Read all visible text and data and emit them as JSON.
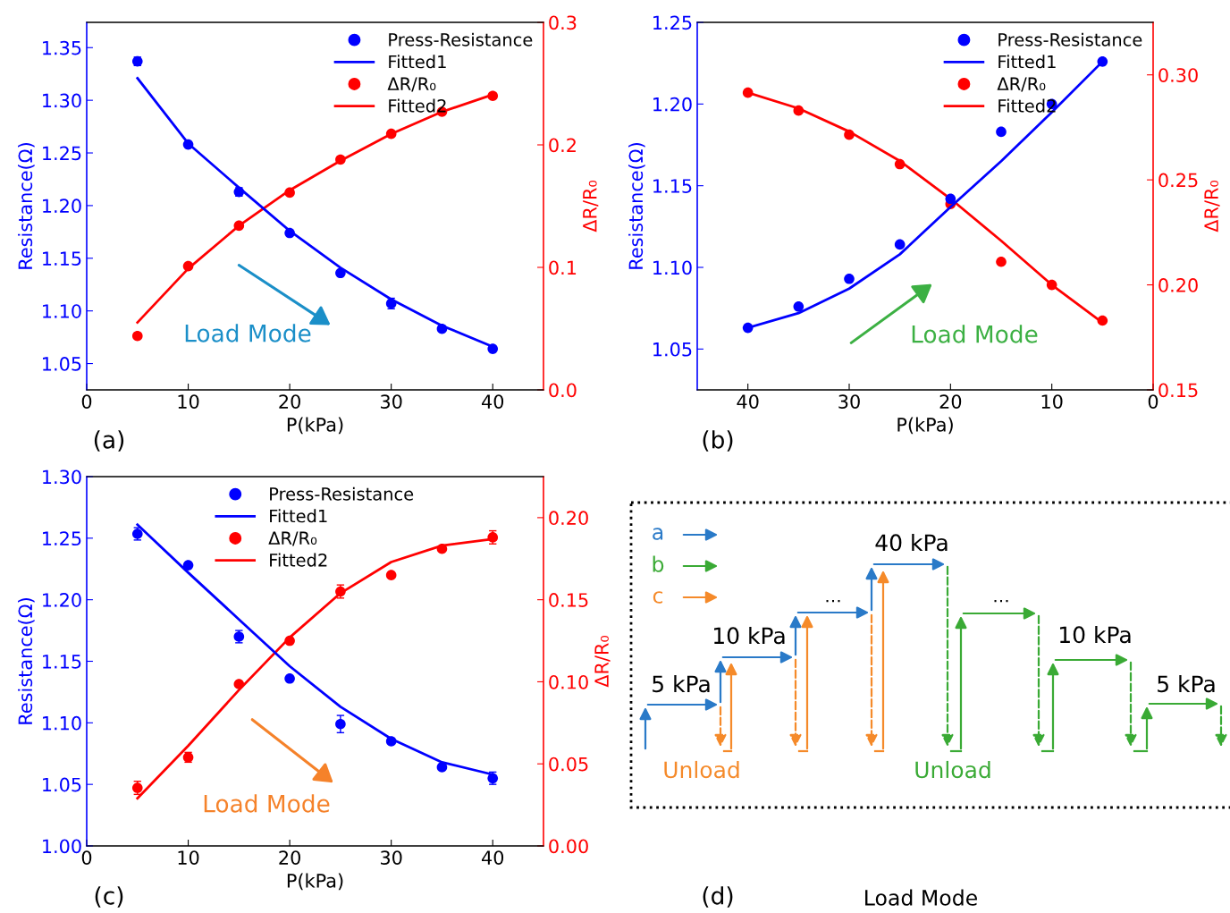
{
  "chart_data": [
    {
      "type": "scatter",
      "xlabel": "P(kPa)",
      "ylabel": "Resistance(Ω)",
      "y2label": "ΔR/R₀",
      "annotations": [
        "Load Mode",
        "(a)"
      ],
      "x": [
        5,
        10,
        15,
        20,
        25,
        30,
        35,
        40
      ],
      "xlim": [
        0,
        45
      ],
      "xticks": [
        0,
        10,
        20,
        30,
        40
      ],
      "ylim": [
        1.025,
        1.374
      ],
      "yticks": [
        {
          "value": 1.05,
          "label": "1.05"
        },
        {
          "value": 1.1,
          "label": "1.10"
        },
        {
          "value": 1.15,
          "label": "1.15"
        },
        {
          "value": 1.2,
          "label": "1.20"
        },
        {
          "value": 1.25,
          "label": "1.25"
        },
        {
          "value": 1.3,
          "label": "1.30"
        },
        {
          "value": 1.35,
          "label": "1.35"
        }
      ],
      "y2lim": [
        0,
        0.3
      ],
      "y2ticks": [
        {
          "value": 0,
          "label": "0.0"
        },
        0.1,
        0.2,
        0.3
      ],
      "legend": "top right",
      "marker": "circle",
      "series": [
        {
          "name": "Press-Resistance",
          "type": "scatter",
          "color": "#0000ff",
          "values": [
            1.337,
            1.258,
            1.213,
            1.174,
            1.136,
            1.107,
            1.083,
            1.064
          ],
          "errors": [
            0.004,
            null,
            0.004,
            null,
            null,
            0.005,
            null,
            null
          ]
        },
        {
          "name": "Fitted1",
          "type": "line",
          "marker": "none",
          "color": "#0000ff",
          "values": [
            1.321,
            1.259,
            1.217,
            1.176,
            1.141,
            1.111,
            1.086,
            1.066
          ]
        },
        {
          "name": "ΔR/R₀",
          "type": "scatter",
          "axis": "y2",
          "color": "#ff0000",
          "values": [
            0.044,
            0.101,
            0.134,
            0.161,
            0.188,
            0.209,
            0.227,
            0.24
          ]
        },
        {
          "name": "Fitted2",
          "type": "line",
          "marker": "none",
          "axis": "y2",
          "color": "#ff0000",
          "values": [
            0.055,
            0.099,
            0.134,
            0.163,
            0.187,
            0.209,
            0.227,
            0.241
          ]
        }
      ]
    },
    {
      "type": "scatter",
      "xlabel": "P(kPa)",
      "ylabel": "Resistance(Ω)",
      "y2label": "ΔR/R₀",
      "annotations": [
        "Load Mode",
        "(b)"
      ],
      "x": [
        40,
        35,
        30,
        25,
        20,
        15,
        10,
        5
      ],
      "xlim": [
        45,
        0
      ],
      "xticks": [
        40,
        30,
        20,
        10,
        0
      ],
      "ylim": [
        1.025,
        1.25
      ],
      "yticks": [
        {
          "value": 1.05,
          "label": "1.05"
        },
        {
          "value": 1.1,
          "label": "1.10"
        },
        {
          "value": 1.15,
          "label": "1.15"
        },
        {
          "value": 1.2,
          "label": "1.20"
        },
        {
          "value": 1.25,
          "label": "1.25"
        }
      ],
      "y2lim": [
        0.15,
        0.325
      ],
      "y2ticks": [
        {
          "value": 0.15,
          "label": "0.15"
        },
        {
          "value": 0.2,
          "label": "0.20"
        },
        {
          "value": 0.25,
          "label": "0.25"
        },
        {
          "value": 0.3,
          "label": "0.30"
        }
      ],
      "legend": "top right",
      "marker": "circle",
      "series": [
        {
          "name": "Press-Resistance",
          "type": "scatter",
          "color": "#0000ff",
          "values": [
            1.063,
            1.076,
            1.093,
            1.114,
            1.142,
            1.183,
            1.2,
            1.226
          ]
        },
        {
          "name": "Fitted1",
          "type": "line",
          "marker": "none",
          "color": "#0000ff",
          "values": [
            1.063,
            1.072,
            1.087,
            1.108,
            1.137,
            1.165,
            1.195,
            1.226
          ]
        },
        {
          "name": "ΔR/R₀",
          "type": "scatter",
          "axis": "y2",
          "color": "#ff0000",
          "values": [
            0.2915,
            0.283,
            0.2715,
            0.2575,
            0.2385,
            0.211,
            0.2,
            0.183
          ]
        },
        {
          "name": "Fitted2",
          "type": "line",
          "marker": "none",
          "axis": "y2",
          "color": "#ff0000",
          "values": [
            0.2915,
            0.284,
            0.273,
            0.259,
            0.241,
            0.221,
            0.2,
            0.182
          ]
        }
      ]
    },
    {
      "type": "scatter",
      "xlabel": "P(kPa)",
      "ylabel": "Resistance(Ω)",
      "y2label": "ΔR/R₀",
      "annotations": [
        "Load Mode",
        "(c)"
      ],
      "x": [
        5,
        10,
        15,
        20,
        25,
        30,
        35,
        40
      ],
      "xlim": [
        0,
        45
      ],
      "xticks": [
        0,
        10,
        20,
        30,
        40
      ],
      "ylim": [
        1.0,
        1.3
      ],
      "yticks": [
        {
          "value": 1.0,
          "label": "1.00"
        },
        {
          "value": 1.05,
          "label": "1.05"
        },
        {
          "value": 1.1,
          "label": "1.10"
        },
        {
          "value": 1.15,
          "label": "1.15"
        },
        {
          "value": 1.2,
          "label": "1.20"
        },
        {
          "value": 1.25,
          "label": "1.25"
        },
        {
          "value": 1.3,
          "label": "1.30"
        }
      ],
      "y2lim": [
        0,
        0.225
      ],
      "y2ticks": [
        {
          "value": 0,
          "label": "0.00"
        },
        {
          "value": 0.05,
          "label": "0.05"
        },
        {
          "value": 0.1,
          "label": "0.10"
        },
        {
          "value": 0.15,
          "label": "0.15"
        },
        {
          "value": 0.2,
          "label": "0.20"
        }
      ],
      "legend": "top",
      "marker": "circle",
      "series": [
        {
          "name": "Press-Resistance",
          "type": "scatter",
          "color": "#0000ff",
          "values": [
            1.2535,
            1.228,
            1.17,
            1.136,
            1.099,
            1.085,
            1.064,
            1.055
          ],
          "errors": [
            0.005,
            null,
            0.005,
            null,
            0.007,
            null,
            null,
            0.005
          ]
        },
        {
          "name": "Fitted1",
          "type": "line",
          "marker": "none",
          "color": "#0000ff",
          "values": [
            1.261,
            1.222,
            1.184,
            1.146,
            1.113,
            1.087,
            1.068,
            1.058
          ]
        },
        {
          "name": "ΔR/R₀",
          "type": "scatter",
          "axis": "y2",
          "color": "#ff0000",
          "values": [
            0.0354,
            0.054,
            0.0986,
            0.125,
            0.155,
            0.165,
            0.181,
            0.188
          ],
          "errors": [
            0.004,
            0.003,
            null,
            null,
            0.004,
            null,
            null,
            0.004
          ]
        },
        {
          "name": "Fitted2",
          "type": "line",
          "marker": "none",
          "axis": "y2",
          "color": "#ff0000",
          "values": [
            0.029,
            0.061,
            0.095,
            0.127,
            0.154,
            0.173,
            0.183,
            0.187
          ]
        }
      ]
    },
    {
      "type": "other",
      "annotations": [
        "a",
        "b",
        "c",
        "5 kPa",
        "10 kPa",
        "40 kPa",
        "…",
        "…",
        "10 kPa",
        "5 kPa",
        "Unload",
        "Unload",
        "(d)",
        "Load Mode"
      ]
    }
  ]
}
